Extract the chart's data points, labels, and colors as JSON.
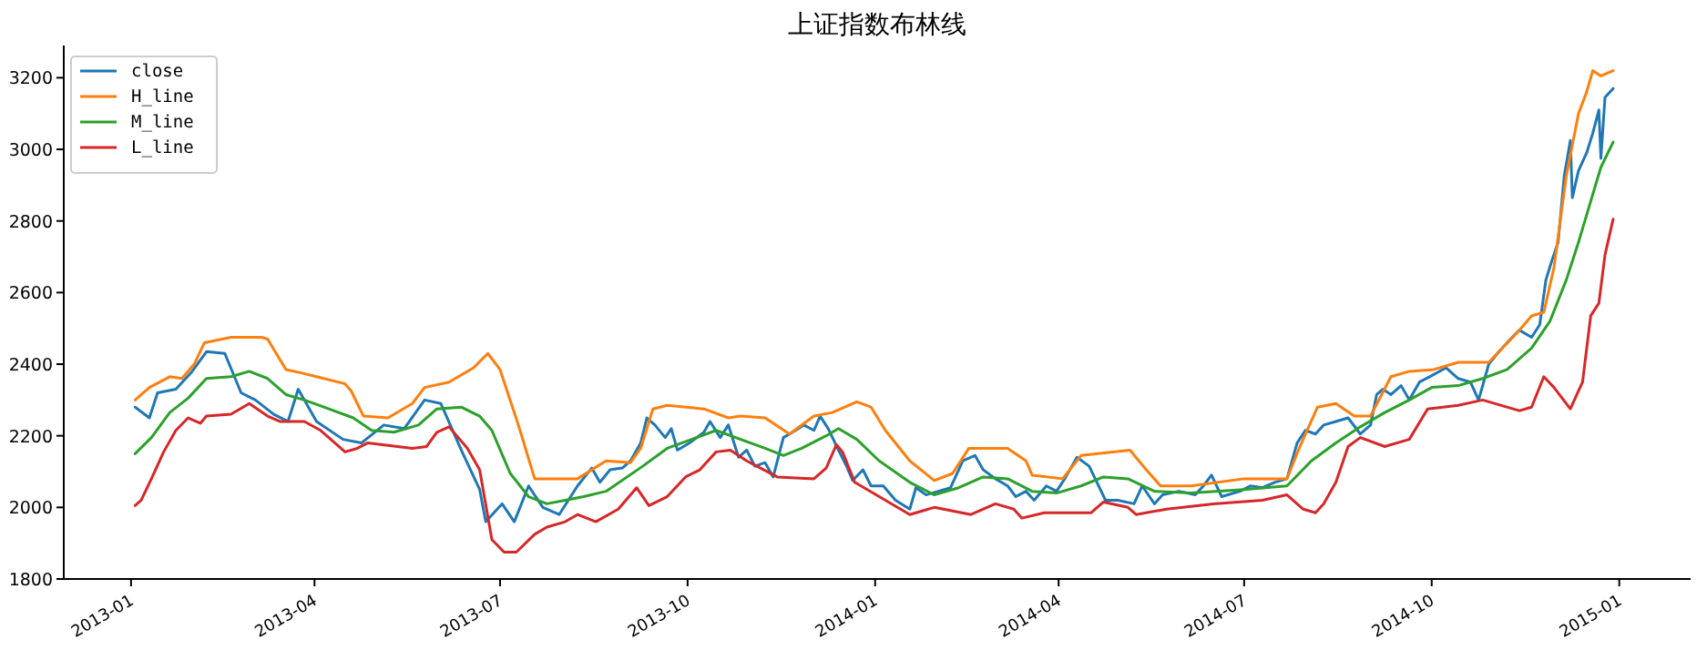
{
  "chart_data": {
    "type": "line",
    "title": "上证指数布林线",
    "xlim": [
      "2012-11-29",
      "2015-02-05"
    ],
    "ylim": [
      1800,
      3290
    ],
    "xticks": [
      {
        "value": "2013-01-01",
        "label": "2013-01"
      },
      {
        "value": "2013-04-01",
        "label": "2013-04"
      },
      {
        "value": "2013-07-01",
        "label": "2013-07"
      },
      {
        "value": "2013-10-01",
        "label": "2013-10"
      },
      {
        "value": "2014-01-01",
        "label": "2014-01"
      },
      {
        "value": "2014-04-01",
        "label": "2014-04"
      },
      {
        "value": "2014-07-01",
        "label": "2014-07"
      },
      {
        "value": "2014-10-01",
        "label": "2014-10"
      },
      {
        "value": "2015-01-01",
        "label": "2015-01"
      }
    ],
    "yticks": [
      1800,
      2000,
      2200,
      2400,
      2600,
      2800,
      3000,
      3200
    ],
    "grid": false,
    "legend": "top left",
    "series": [
      {
        "name": "close",
        "color": "#1f77b4",
        "x": [
          "2013-01-03",
          "2013-01-10",
          "2013-01-14",
          "2013-01-23",
          "2013-01-31",
          "2013-02-07",
          "2013-02-16",
          "2013-02-24",
          "2013-03-03",
          "2013-03-12",
          "2013-03-19",
          "2013-03-24",
          "2013-04-02",
          "2013-04-15",
          "2013-04-24",
          "2013-05-05",
          "2013-05-15",
          "2013-05-25",
          "2013-06-02",
          "2013-06-12",
          "2013-06-21",
          "2013-06-24",
          "2013-07-02",
          "2013-07-08",
          "2013-07-15",
          "2013-07-22",
          "2013-07-30",
          "2013-08-08",
          "2013-08-15",
          "2013-08-19",
          "2013-08-24",
          "2013-08-30",
          "2013-09-03",
          "2013-09-08",
          "2013-09-11",
          "2013-09-15",
          "2013-09-20",
          "2013-09-23",
          "2013-09-26",
          "2013-10-02",
          "2013-10-09",
          "2013-10-12",
          "2013-10-17",
          "2013-10-21",
          "2013-10-26",
          "2013-10-30",
          "2013-11-03",
          "2013-11-08",
          "2013-11-12",
          "2013-11-17",
          "2013-11-23",
          "2013-11-27",
          "2013-12-02",
          "2013-12-05",
          "2013-12-09",
          "2013-12-14",
          "2013-12-18",
          "2013-12-21",
          "2013-12-26",
          "2013-12-30",
          "2014-01-05",
          "2014-01-11",
          "2014-01-18",
          "2014-01-21",
          "2014-01-26",
          "2014-02-01",
          "2014-02-07",
          "2014-02-13",
          "2014-02-19",
          "2014-02-23",
          "2014-03-01",
          "2014-03-07",
          "2014-03-11",
          "2014-03-16",
          "2014-03-20",
          "2014-03-26",
          "2014-03-31",
          "2014-04-04",
          "2014-04-10",
          "2014-04-16",
          "2014-04-24",
          "2014-04-30",
          "2014-05-08",
          "2014-05-12",
          "2014-05-18",
          "2014-05-22",
          "2014-05-30",
          "2014-06-07",
          "2014-06-11",
          "2014-06-15",
          "2014-06-20",
          "2014-06-29",
          "2014-07-04",
          "2014-07-10",
          "2014-07-16",
          "2014-07-22",
          "2014-07-27",
          "2014-07-31",
          "2014-08-05",
          "2014-08-09",
          "2014-08-15",
          "2014-08-21",
          "2014-08-27",
          "2014-09-01",
          "2014-09-04",
          "2014-09-07",
          "2014-09-11",
          "2014-09-16",
          "2014-09-20",
          "2014-09-25",
          "2014-09-30",
          "2014-10-08",
          "2014-10-14",
          "2014-10-20",
          "2014-10-24",
          "2014-10-29",
          "2014-11-03",
          "2014-11-07",
          "2014-11-13",
          "2014-11-19",
          "2014-11-23",
          "2014-11-26",
          "2014-11-29",
          "2014-12-02",
          "2014-12-05",
          "2014-12-08",
          "2014-12-09",
          "2014-12-12",
          "2014-12-16",
          "2014-12-19",
          "2014-12-22",
          "2014-12-23",
          "2014-12-25",
          "2014-12-29"
        ],
        "values": [
          2280,
          2250,
          2320,
          2330,
          2380,
          2435,
          2430,
          2320,
          2300,
          2260,
          2240,
          2330,
          2240,
          2190,
          2180,
          2230,
          2220,
          2300,
          2290,
          2160,
          2050,
          1960,
          2010,
          1960,
          2060,
          2000,
          1980,
          2060,
          2110,
          2070,
          2105,
          2110,
          2130,
          2180,
          2250,
          2230,
          2195,
          2220,
          2160,
          2180,
          2210,
          2240,
          2195,
          2230,
          2140,
          2160,
          2115,
          2125,
          2085,
          2195,
          2215,
          2230,
          2215,
          2255,
          2220,
          2160,
          2115,
          2075,
          2105,
          2060,
          2060,
          2020,
          1995,
          2055,
          2035,
          2045,
          2055,
          2130,
          2145,
          2105,
          2080,
          2060,
          2030,
          2045,
          2020,
          2060,
          2045,
          2080,
          2140,
          2115,
          2020,
          2020,
          2010,
          2060,
          2010,
          2035,
          2045,
          2035,
          2060,
          2090,
          2030,
          2045,
          2060,
          2055,
          2070,
          2080,
          2180,
          2215,
          2205,
          2230,
          2240,
          2250,
          2205,
          2230,
          2315,
          2330,
          2315,
          2340,
          2300,
          2350,
          2365,
          2390,
          2360,
          2350,
          2300,
          2400,
          2435,
          2460,
          2495,
          2475,
          2510,
          2635,
          2690,
          2740,
          2925,
          3025,
          2865,
          2940,
          2990,
          3045,
          3110,
          2975,
          3145,
          3170
        ]
      },
      {
        "name": "H_line",
        "color": "#ff7f0e",
        "x": [
          "2013-01-03",
          "2013-01-10",
          "2013-01-20",
          "2013-01-26",
          "2013-02-01",
          "2013-02-06",
          "2013-02-19",
          "2013-03-06",
          "2013-03-09",
          "2013-03-18",
          "2013-03-26",
          "2013-04-02",
          "2013-04-16",
          "2013-04-19",
          "2013-04-25",
          "2013-05-07",
          "2013-05-19",
          "2013-05-25",
          "2013-06-06",
          "2013-06-18",
          "2013-06-25",
          "2013-07-01",
          "2013-07-10",
          "2013-07-18",
          "2013-08-08",
          "2013-08-22",
          "2013-09-03",
          "2013-09-08",
          "2013-09-14",
          "2013-09-21",
          "2013-10-09",
          "2013-10-21",
          "2013-10-27",
          "2013-11-08",
          "2013-11-20",
          "2013-12-02",
          "2013-12-11",
          "2013-12-23",
          "2013-12-30",
          "2014-01-06",
          "2014-01-18",
          "2014-01-30",
          "2014-02-08",
          "2014-02-16",
          "2014-03-07",
          "2014-03-16",
          "2014-03-19",
          "2014-04-03",
          "2014-04-12",
          "2014-05-06",
          "2014-05-14",
          "2014-05-21",
          "2014-06-05",
          "2014-07-01",
          "2014-07-22",
          "2014-07-28",
          "2014-08-06",
          "2014-08-15",
          "2014-08-24",
          "2014-09-01",
          "2014-09-11",
          "2014-09-20",
          "2014-10-02",
          "2014-10-14",
          "2014-10-29",
          "2014-11-03",
          "2014-11-13",
          "2014-11-19",
          "2014-11-25",
          "2014-11-30",
          "2014-12-06",
          "2014-12-12",
          "2014-12-16",
          "2014-12-19",
          "2014-12-23",
          "2014-12-29"
        ],
        "values": [
          2300,
          2335,
          2365,
          2360,
          2400,
          2460,
          2475,
          2475,
          2470,
          2385,
          2375,
          2365,
          2345,
          2325,
          2255,
          2250,
          2290,
          2335,
          2350,
          2390,
          2430,
          2385,
          2230,
          2080,
          2080,
          2130,
          2125,
          2165,
          2275,
          2285,
          2275,
          2250,
          2255,
          2250,
          2205,
          2255,
          2265,
          2295,
          2280,
          2215,
          2130,
          2075,
          2095,
          2165,
          2165,
          2130,
          2090,
          2080,
          2145,
          2160,
          2105,
          2060,
          2060,
          2080,
          2080,
          2165,
          2280,
          2290,
          2255,
          2255,
          2365,
          2380,
          2385,
          2405,
          2405,
          2435,
          2495,
          2535,
          2545,
          2670,
          2925,
          3100,
          3160,
          3220,
          3205,
          3220
        ]
      },
      {
        "name": "M_line",
        "color": "#2ca02c",
        "x": [
          "2013-01-03",
          "2013-01-11",
          "2013-01-20",
          "2013-01-29",
          "2013-02-07",
          "2013-02-19",
          "2013-02-28",
          "2013-03-09",
          "2013-03-18",
          "2013-03-27",
          "2013-04-08",
          "2013-04-20",
          "2013-04-29",
          "2013-05-10",
          "2013-05-22",
          "2013-05-31",
          "2013-06-12",
          "2013-06-21",
          "2013-06-27",
          "2013-07-06",
          "2013-07-15",
          "2013-07-24",
          "2013-08-02",
          "2013-08-11",
          "2013-08-22",
          "2013-09-09",
          "2013-09-21",
          "2013-10-03",
          "2013-10-15",
          "2013-10-27",
          "2013-11-08",
          "2013-11-17",
          "2013-11-26",
          "2013-12-08",
          "2013-12-14",
          "2013-12-23",
          "2014-01-03",
          "2014-01-18",
          "2014-01-30",
          "2014-02-11",
          "2014-02-23",
          "2014-03-07",
          "2014-03-19",
          "2014-03-31",
          "2014-04-12",
          "2014-04-23",
          "2014-05-05",
          "2014-05-18",
          "2014-06-05",
          "2014-07-01",
          "2014-07-22",
          "2014-08-03",
          "2014-08-15",
          "2014-08-27",
          "2014-09-08",
          "2014-09-20",
          "2014-10-01",
          "2014-10-14",
          "2014-10-26",
          "2014-11-07",
          "2014-11-19",
          "2014-11-28",
          "2014-12-06",
          "2014-12-12",
          "2014-12-18",
          "2014-12-23",
          "2014-12-29"
        ],
        "values": [
          2150,
          2195,
          2265,
          2305,
          2360,
          2365,
          2380,
          2360,
          2315,
          2300,
          2275,
          2250,
          2215,
          2210,
          2230,
          2275,
          2280,
          2255,
          2215,
          2095,
          2030,
          2010,
          2020,
          2030,
          2045,
          2115,
          2165,
          2190,
          2215,
          2190,
          2165,
          2145,
          2165,
          2200,
          2220,
          2190,
          2130,
          2070,
          2035,
          2055,
          2085,
          2080,
          2045,
          2040,
          2060,
          2085,
          2080,
          2045,
          2040,
          2050,
          2060,
          2130,
          2180,
          2225,
          2265,
          2300,
          2335,
          2340,
          2360,
          2385,
          2445,
          2520,
          2635,
          2740,
          2855,
          2950,
          3020
        ]
      },
      {
        "name": "L_line",
        "color": "#d62728",
        "x": [
          "2013-01-03",
          "2013-01-06",
          "2013-01-11",
          "2013-01-17",
          "2013-01-23",
          "2013-01-29",
          "2013-02-04",
          "2013-02-07",
          "2013-02-19",
          "2013-02-25",
          "2013-02-28",
          "2013-03-09",
          "2013-03-15",
          "2013-03-27",
          "2013-04-04",
          "2013-04-16",
          "2013-04-22",
          "2013-04-27",
          "2013-05-19",
          "2013-05-26",
          "2013-05-31",
          "2013-06-06",
          "2013-06-15",
          "2013-06-21",
          "2013-06-27",
          "2013-07-03",
          "2013-07-09",
          "2013-07-18",
          "2013-07-24",
          "2013-08-02",
          "2013-08-08",
          "2013-08-17",
          "2013-08-28",
          "2013-09-06",
          "2013-09-12",
          "2013-09-21",
          "2013-09-30",
          "2013-10-07",
          "2013-10-15",
          "2013-10-22",
          "2013-10-30",
          "2013-11-14",
          "2013-12-02",
          "2013-12-08",
          "2013-12-13",
          "2013-12-16",
          "2013-12-22",
          "2014-01-03",
          "2014-01-18",
          "2014-01-30",
          "2014-02-17",
          "2014-03-01",
          "2014-03-10",
          "2014-03-14",
          "2014-03-25",
          "2014-04-17",
          "2014-04-23",
          "2014-05-05",
          "2014-05-09",
          "2014-05-24",
          "2014-06-16",
          "2014-07-10",
          "2014-07-22",
          "2014-07-30",
          "2014-08-05",
          "2014-08-09",
          "2014-08-15",
          "2014-08-21",
          "2014-08-27",
          "2014-09-08",
          "2014-09-20",
          "2014-09-29",
          "2014-10-14",
          "2014-10-26",
          "2014-11-13",
          "2014-11-19",
          "2014-11-25",
          "2014-11-30",
          "2014-12-08",
          "2014-12-14",
          "2014-12-18",
          "2014-12-22",
          "2014-12-25",
          "2014-12-29"
        ],
        "values": [
          2005,
          2020,
          2080,
          2155,
          2215,
          2250,
          2235,
          2255,
          2260,
          2280,
          2290,
          2255,
          2240,
          2240,
          2215,
          2155,
          2165,
          2180,
          2165,
          2170,
          2210,
          2225,
          2165,
          2105,
          1910,
          1875,
          1875,
          1925,
          1945,
          1960,
          1980,
          1960,
          1995,
          2055,
          2005,
          2030,
          2085,
          2105,
          2155,
          2160,
          2130,
          2085,
          2080,
          2110,
          2175,
          2155,
          2070,
          2030,
          1980,
          2000,
          1980,
          2010,
          1995,
          1970,
          1985,
          1985,
          2015,
          2000,
          1980,
          1995,
          2010,
          2020,
          2035,
          1995,
          1985,
          2010,
          2070,
          2170,
          2195,
          2170,
          2190,
          2275,
          2285,
          2300,
          2270,
          2280,
          2365,
          2335,
          2275,
          2350,
          2535,
          2570,
          2705,
          2805
        ]
      }
    ]
  }
}
